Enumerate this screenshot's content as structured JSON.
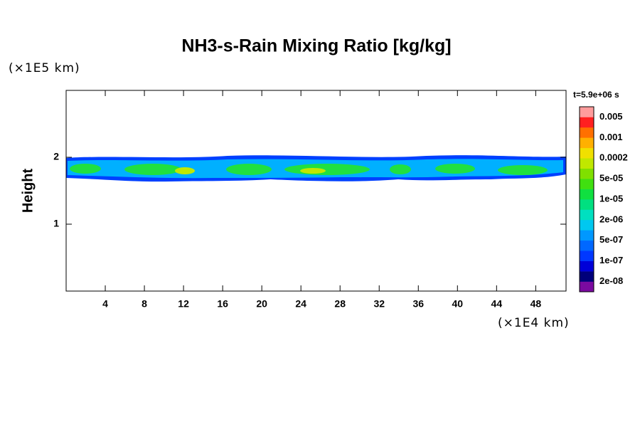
{
  "chart_data": {
    "type": "contour",
    "title": "NH3-s-Rain Mixing Ratio [kg/kg]",
    "y_unit": "(×1E5 km)",
    "x_unit": "(×1E4 km)",
    "ylabel": "Height",
    "time_label": "t=5.9e+06 s",
    "xlim": [
      0,
      51.1
    ],
    "ylim": [
      0,
      3
    ],
    "xticks": [
      4,
      8,
      12,
      16,
      20,
      24,
      28,
      32,
      36,
      40,
      44,
      48
    ],
    "yticks": [
      1,
      2
    ],
    "colorbar": {
      "colors": [
        "#7a0aa0",
        "#00007a",
        "#0000d8",
        "#0038ff",
        "#0068ff",
        "#0098ff",
        "#00c8f0",
        "#00e0c0",
        "#00e080",
        "#10e040",
        "#40e010",
        "#80e000",
        "#c0e800",
        "#f0e000",
        "#ffb000",
        "#ff7000",
        "#ff2020",
        "#ff9c9c"
      ],
      "labels": [
        "2e-08",
        "1e-07",
        "5e-07",
        "2e-06",
        "1e-05",
        "5e-05",
        "0.0002",
        "0.001",
        "0.005"
      ]
    }
  }
}
